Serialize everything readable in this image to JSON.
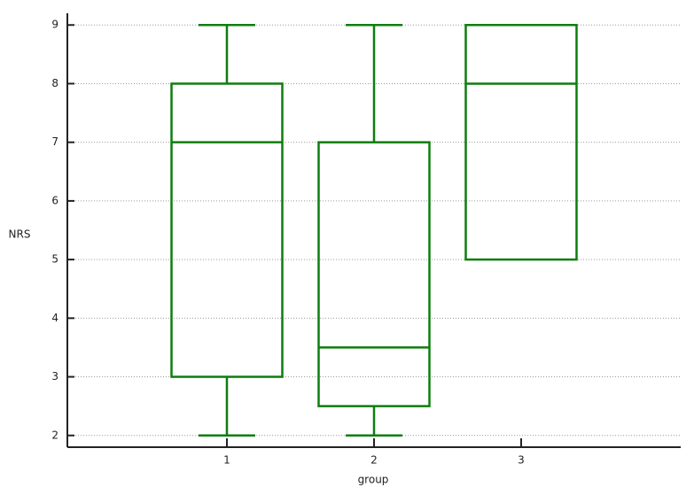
{
  "chart_data": {
    "type": "box",
    "x_label": "group",
    "y_label": "NRS",
    "categories": [
      "1",
      "2",
      "3"
    ],
    "color": "#0e7d0e",
    "ylim": [
      1.8,
      9.2
    ],
    "yticks": [
      2,
      3,
      4,
      5,
      6,
      7,
      8,
      9
    ],
    "grid": true,
    "boxes": [
      {
        "min": 2,
        "q1": 3,
        "median": 7,
        "q3": 8,
        "max": 9
      },
      {
        "min": 2,
        "q1": 2.5,
        "median": 3.5,
        "q3": 7,
        "max": 9
      },
      {
        "min": 5,
        "q1": 5,
        "median": 8,
        "q3": 9,
        "max": 9
      }
    ]
  }
}
